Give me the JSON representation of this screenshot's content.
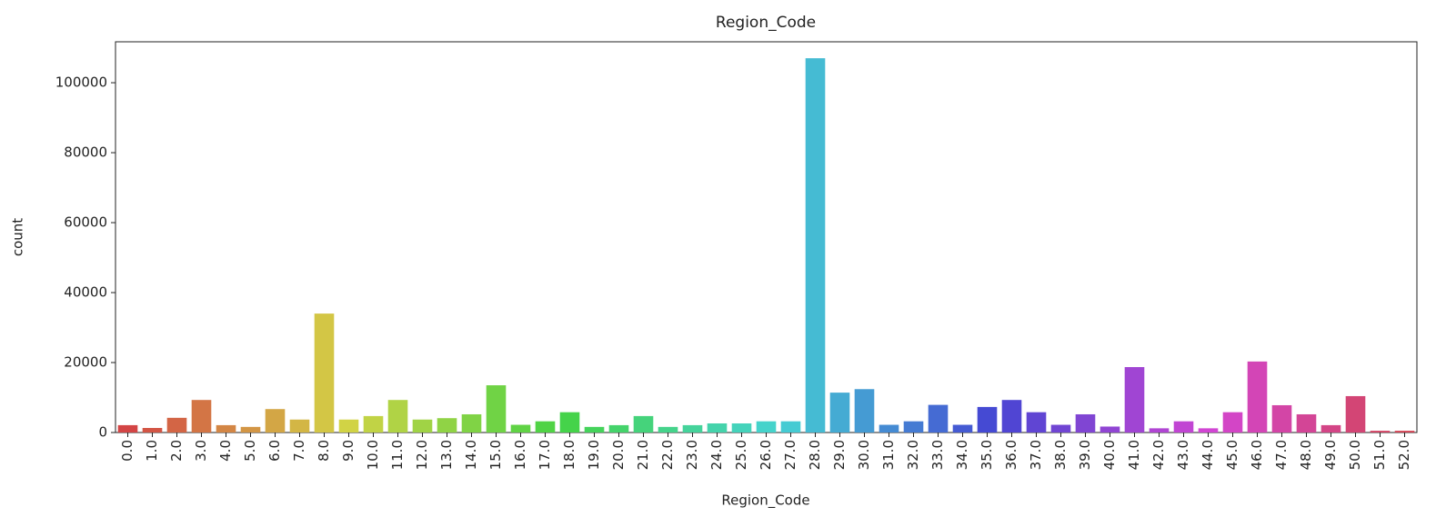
{
  "chart_data": {
    "type": "bar",
    "title": "Region_Code",
    "x_label": "Region_Code",
    "y_label": "count",
    "categories": [
      "0.0",
      "1.0",
      "2.0",
      "3.0",
      "4.0",
      "5.0",
      "6.0",
      "7.0",
      "8.0",
      "9.0",
      "10.0",
      "11.0",
      "12.0",
      "13.0",
      "14.0",
      "15.0",
      "16.0",
      "17.0",
      "18.0",
      "19.0",
      "20.0",
      "21.0",
      "22.0",
      "23.0",
      "24.0",
      "25.0",
      "26.0",
      "27.0",
      "28.0",
      "29.0",
      "30.0",
      "31.0",
      "32.0",
      "33.0",
      "34.0",
      "35.0",
      "36.0",
      "37.0",
      "38.0",
      "39.0",
      "40.0",
      "41.0",
      "42.0",
      "43.0",
      "44.0",
      "45.0",
      "46.0",
      "47.0",
      "48.0",
      "49.0",
      "50.0",
      "51.0",
      "52.0"
    ],
    "values": [
      2100,
      1300,
      4200,
      9300,
      2100,
      1600,
      6700,
      3700,
      34000,
      3700,
      4700,
      9300,
      3700,
      4100,
      5200,
      13500,
      2200,
      3200,
      5800,
      1600,
      2100,
      4700,
      1600,
      2100,
      2600,
      2600,
      3200,
      3200,
      107000,
      11400,
      12400,
      2200,
      3200,
      7900,
      2200,
      7300,
      9300,
      5800,
      2200,
      5200,
      1700,
      18700,
      1200,
      3200,
      1200,
      5800,
      20300,
      7800,
      5200,
      2100,
      10400,
      500,
      500
    ],
    "palette": "hls",
    "ylim": [
      0,
      111700
    ],
    "yticks": [
      0,
      20000,
      40000,
      60000,
      80000,
      100000
    ],
    "grid": false
  }
}
